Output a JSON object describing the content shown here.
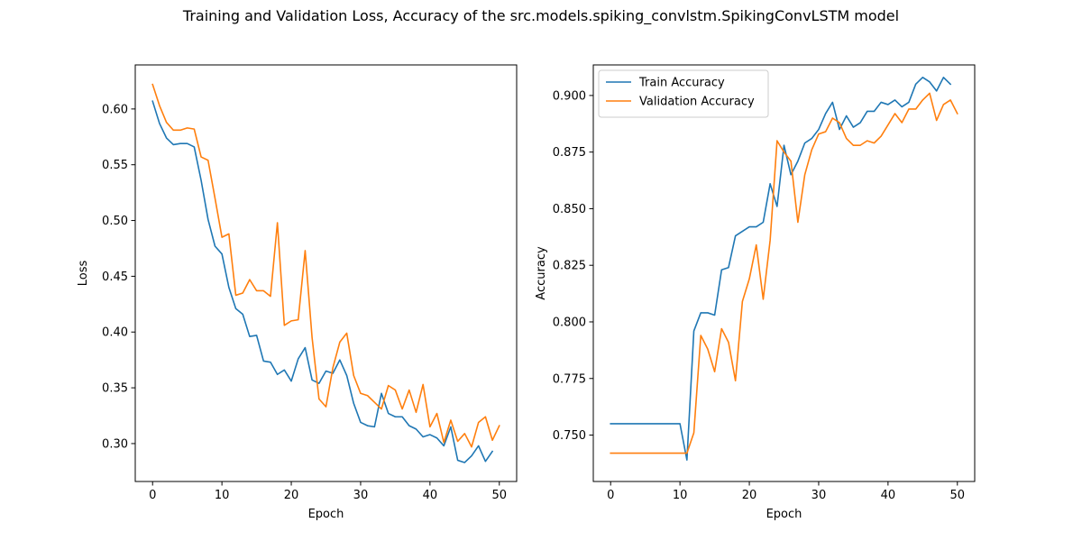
{
  "title": "Training and Validation Loss, Accuracy of the src.models.spiking_convlstm.SpikingConvLSTM model",
  "chart_data": [
    {
      "type": "line",
      "xlabel": "Epoch",
      "ylabel": "Loss",
      "xlim": [
        -2.5,
        52.5
      ],
      "ylim": [
        0.266,
        0.6395
      ],
      "xticks": [
        0,
        10,
        20,
        30,
        40,
        50
      ],
      "yticks": [
        0.3,
        0.35,
        0.4,
        0.45,
        0.5,
        0.55,
        0.6
      ],
      "ytick_labels": [
        "0.30",
        "0.35",
        "0.40",
        "0.45",
        "0.50",
        "0.55",
        "0.60"
      ],
      "grid": false,
      "legend": null,
      "x": [
        0,
        1,
        2,
        3,
        4,
        5,
        6,
        7,
        8,
        9,
        10,
        11,
        12,
        13,
        14,
        15,
        16,
        17,
        18,
        19,
        20,
        21,
        22,
        23,
        24,
        25,
        26,
        27,
        28,
        29,
        30,
        31,
        32,
        33,
        34,
        35,
        36,
        37,
        38,
        39,
        40,
        41,
        42,
        43,
        44,
        45,
        46,
        47,
        48,
        49,
        50
      ],
      "series": [
        {
          "color": "#1f77b4",
          "values": [
            0.607,
            0.587,
            0.574,
            0.568,
            0.569,
            0.569,
            0.566,
            0.536,
            0.501,
            0.477,
            0.47,
            0.44,
            0.421,
            0.416,
            0.396,
            0.397,
            0.374,
            0.373,
            0.362,
            0.366,
            0.356,
            0.376,
            0.386,
            0.357,
            0.354,
            0.365,
            0.363,
            0.375,
            0.361,
            0.336,
            0.319,
            0.316,
            0.315,
            0.345,
            0.327,
            0.324,
            0.324,
            0.316,
            0.313,
            0.306,
            0.308,
            0.305,
            0.298,
            0.315,
            0.285,
            0.283,
            0.289,
            0.298,
            0.284,
            0.293,
            null
          ]
        },
        {
          "color": "#ff7f0e",
          "values": [
            0.622,
            0.603,
            0.588,
            0.581,
            0.581,
            0.583,
            0.582,
            0.557,
            0.554,
            0.52,
            0.485,
            0.488,
            0.433,
            0.435,
            0.447,
            0.437,
            0.437,
            0.432,
            0.498,
            0.406,
            0.41,
            0.411,
            0.473,
            0.395,
            0.34,
            0.333,
            0.368,
            0.391,
            0.399,
            0.361,
            0.345,
            0.343,
            0.337,
            0.331,
            0.352,
            0.348,
            0.331,
            0.348,
            0.328,
            0.353,
            0.315,
            0.327,
            0.301,
            0.321,
            0.302,
            0.309,
            0.297,
            0.319,
            0.324,
            0.303,
            0.316
          ]
        }
      ]
    },
    {
      "type": "line",
      "xlabel": "Epoch",
      "ylabel": "Accuracy",
      "xlim": [
        -2.5,
        52.5
      ],
      "ylim": [
        0.7295,
        0.9135
      ],
      "xticks": [
        0,
        10,
        20,
        30,
        40,
        50
      ],
      "yticks": [
        0.75,
        0.775,
        0.8,
        0.825,
        0.85,
        0.875,
        0.9
      ],
      "ytick_labels": [
        "0.750",
        "0.775",
        "0.800",
        "0.825",
        "0.850",
        "0.875",
        "0.900"
      ],
      "grid": false,
      "legend": "top-left",
      "x": [
        0,
        1,
        2,
        3,
        4,
        5,
        6,
        7,
        8,
        9,
        10,
        11,
        12,
        13,
        14,
        15,
        16,
        17,
        18,
        19,
        20,
        21,
        22,
        23,
        24,
        25,
        26,
        27,
        28,
        29,
        30,
        31,
        32,
        33,
        34,
        35,
        36,
        37,
        38,
        39,
        40,
        41,
        42,
        43,
        44,
        45,
        46,
        47,
        48,
        49,
        50
      ],
      "series": [
        {
          "name": "Train Accuracy",
          "color": "#1f77b4",
          "values": [
            0.755,
            0.755,
            0.755,
            0.755,
            0.755,
            0.755,
            0.755,
            0.755,
            0.755,
            0.755,
            0.755,
            0.739,
            0.796,
            0.804,
            0.804,
            0.803,
            0.823,
            0.824,
            0.838,
            0.84,
            0.842,
            0.842,
            0.844,
            0.861,
            0.851,
            0.878,
            0.865,
            0.871,
            0.879,
            0.881,
            0.885,
            0.892,
            0.897,
            0.885,
            0.891,
            0.886,
            0.888,
            0.893,
            0.893,
            0.897,
            0.896,
            0.898,
            0.895,
            0.897,
            0.905,
            0.908,
            0.906,
            0.902,
            0.908,
            0.905,
            null
          ]
        },
        {
          "name": "Validation Accuracy",
          "color": "#ff7f0e",
          "values": [
            0.742,
            0.742,
            0.742,
            0.742,
            0.742,
            0.742,
            0.742,
            0.742,
            0.742,
            0.742,
            0.742,
            0.742,
            0.751,
            0.794,
            0.788,
            0.778,
            0.797,
            0.791,
            0.774,
            0.809,
            0.819,
            0.834,
            0.81,
            0.836,
            0.88,
            0.875,
            0.871,
            0.844,
            0.865,
            0.876,
            0.883,
            0.884,
            0.89,
            0.888,
            0.881,
            0.878,
            0.878,
            0.88,
            0.879,
            0.882,
            0.887,
            0.892,
            0.888,
            0.894,
            0.894,
            0.898,
            0.901,
            0.889,
            0.896,
            0.898,
            0.892
          ]
        }
      ]
    }
  ]
}
